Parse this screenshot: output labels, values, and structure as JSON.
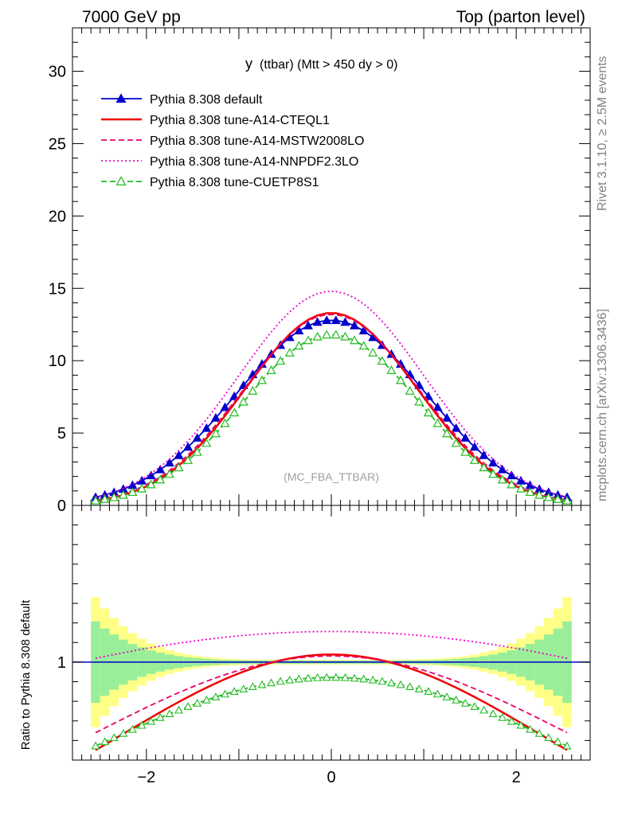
{
  "header": {
    "left": "7000 GeV pp",
    "right": "Top (parton level)"
  },
  "side_labels": {
    "rivet": "Rivet 3.1.10, ≥ 2.5M events",
    "mcplots": "mcplots.cern.ch [arXiv:1306.3436]"
  },
  "chart_data": [
    {
      "type": "line",
      "title": "y (ttbar) (Mtt > 450 dy > 0)",
      "title_main": "y",
      "title_rest": "(ttbar) (Mtt > 450 dy > 0)",
      "watermark": "(MC_FBA_TTBAR)",
      "xlim": [
        -2.8,
        2.8
      ],
      "ylim": [
        0,
        33
      ],
      "yticks": [
        0,
        5,
        10,
        15,
        20,
        25,
        30
      ],
      "legend_position": "top-left",
      "series": [
        {
          "name": "Pythia 8.308 default",
          "color": "#0000cc",
          "style": "solid",
          "marker": "filled-triangle",
          "peak": 12.8,
          "sigma": 1.02
        },
        {
          "name": "Pythia 8.308 tune-A14-CTEQL1",
          "color": "#ee0000",
          "style": "solid",
          "marker": "none",
          "peak": 13.3,
          "sigma": 0.93
        },
        {
          "name": "Pythia 8.308 tune-A14-MSTW2008LO",
          "color": "#ee0066",
          "style": "dashed",
          "marker": "none",
          "peak": 13.2,
          "sigma": 0.95
        },
        {
          "name": "Pythia 8.308 tune-A14-NNPDF2.3LO",
          "color": "#ee00cc",
          "style": "dotted",
          "marker": "none",
          "peak": 14.8,
          "sigma": 1.0
        },
        {
          "name": "Pythia 8.308 tune-CUETP8S1",
          "color": "#22bb22",
          "style": "dashed",
          "marker": "open-triangle",
          "peak": 11.8,
          "sigma": 0.95
        }
      ]
    },
    {
      "type": "line",
      "ylabel": "Ratio to Pythia 8.308 default",
      "xlim": [
        -2.8,
        2.8
      ],
      "ylim": [
        0.5,
        1.8
      ],
      "xticks": [
        -2,
        0,
        2
      ],
      "yticks": [
        1
      ],
      "band_colors": {
        "inner": "#99ee99",
        "outer": "#ffff88"
      }
    }
  ]
}
